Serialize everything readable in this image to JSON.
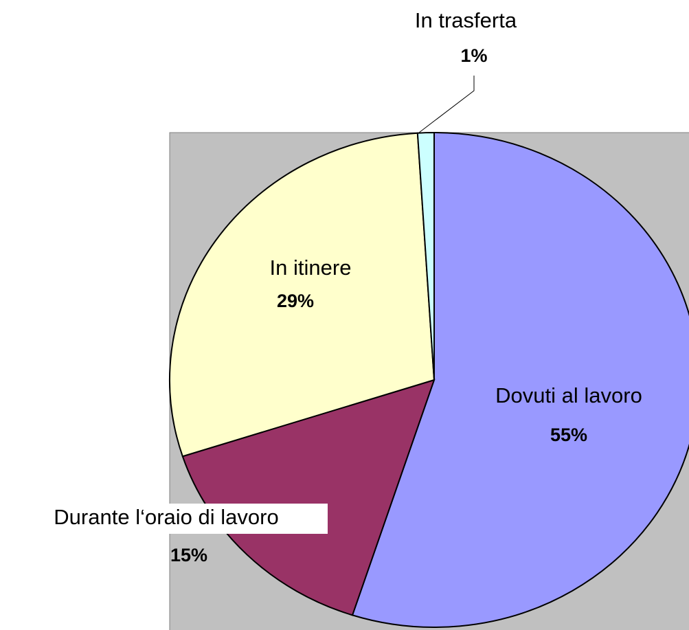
{
  "chart_data": {
    "type": "pie",
    "categories": [
      "Dovuti al lavoro",
      "Durante l‘oraio di lavoro",
      "In itinere",
      "In trasferta"
    ],
    "values": [
      55,
      15,
      29,
      1
    ],
    "value_labels": [
      "55%",
      "15%",
      "29%",
      "1%"
    ],
    "colors": [
      "#9999ff",
      "#993366",
      "#ffffcc",
      "#ccffff"
    ]
  }
}
